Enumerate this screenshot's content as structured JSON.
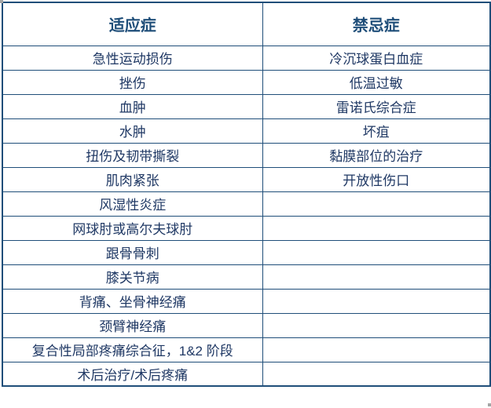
{
  "colors": {
    "border": "#1f4e79",
    "header_text": "#1f4e79",
    "body_text": "#1f3864",
    "background": "#ffffff"
  },
  "table": {
    "headers": {
      "indications": "适应症",
      "contraindications": "禁忌症"
    },
    "rows": [
      {
        "left": "急性运动损伤",
        "right": "冷沉球蛋白血症"
      },
      {
        "left": "挫伤",
        "right": "低温过敏"
      },
      {
        "left": "血肿",
        "right": "雷诺氏综合症"
      },
      {
        "left": "水肿",
        "right": "坏疽"
      },
      {
        "left": "扭伤及韧带撕裂",
        "right": "黏膜部位的治疗"
      },
      {
        "left": "肌肉紧张",
        "right": "开放性伤口"
      },
      {
        "left": "风湿性炎症",
        "right": ""
      },
      {
        "left": "网球肘或高尔夫球肘",
        "right": ""
      },
      {
        "left": "跟骨骨刺",
        "right": ""
      },
      {
        "left": "膝关节病",
        "right": ""
      },
      {
        "left": "背痛、坐骨神经痛",
        "right": ""
      },
      {
        "left": "颈臂神经痛",
        "right": ""
      },
      {
        "left": "复合性局部疼痛综合征，1&2 阶段",
        "right": ""
      },
      {
        "left": "术后治疗/术后疼痛",
        "right": ""
      }
    ]
  }
}
